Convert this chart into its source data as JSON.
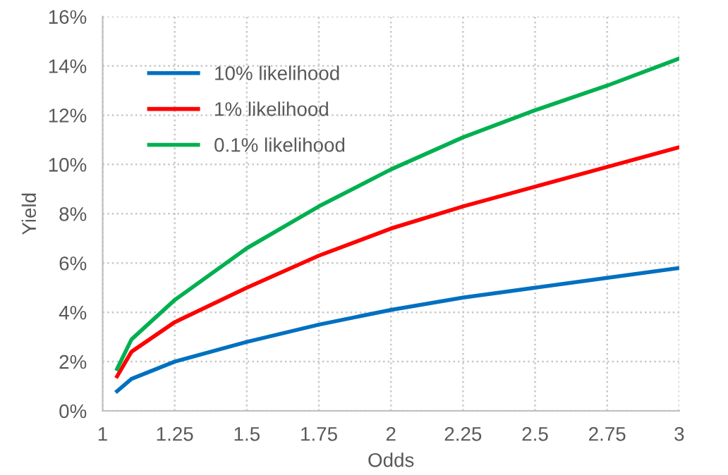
{
  "chart_data": {
    "type": "line",
    "xlabel": "Odds",
    "ylabel": "Yield",
    "x": [
      1.05,
      1.1,
      1.25,
      1.5,
      1.75,
      2,
      2.25,
      2.5,
      2.75,
      3
    ],
    "series": [
      {
        "name": "10% likelihood",
        "color": "#0070c0",
        "values": [
          0.8,
          1.3,
          2.0,
          2.8,
          3.5,
          4.1,
          4.6,
          5.0,
          5.4,
          5.8
        ]
      },
      {
        "name": "1% likelihood",
        "color": "#ff0000",
        "values": [
          1.4,
          2.4,
          3.6,
          5.0,
          6.3,
          7.4,
          8.3,
          9.1,
          9.9,
          10.7
        ]
      },
      {
        "name": "0.1% likelihood",
        "color": "#00b050",
        "values": [
          1.7,
          2.9,
          4.5,
          6.6,
          8.3,
          9.8,
          11.1,
          12.2,
          13.2,
          14.3
        ]
      }
    ],
    "xlim": [
      1,
      3
    ],
    "xticks": [
      1,
      1.25,
      1.5,
      1.75,
      2,
      2.25,
      2.5,
      2.75,
      3
    ],
    "ylim": [
      0,
      16
    ],
    "yticks": [
      {
        "value": 0,
        "label": "0%"
      },
      {
        "value": 2,
        "label": "2%"
      },
      {
        "value": 4,
        "label": "4%"
      },
      {
        "value": 6,
        "label": "6%"
      },
      {
        "value": 8,
        "label": "8%"
      },
      {
        "value": 10,
        "label": "10%"
      },
      {
        "value": 12,
        "label": "12%"
      },
      {
        "value": 14,
        "label": "14%"
      },
      {
        "value": 16,
        "label": "16%"
      }
    ],
    "grid": true,
    "legend": "top left",
    "marker": "none",
    "line_style": "solid"
  }
}
